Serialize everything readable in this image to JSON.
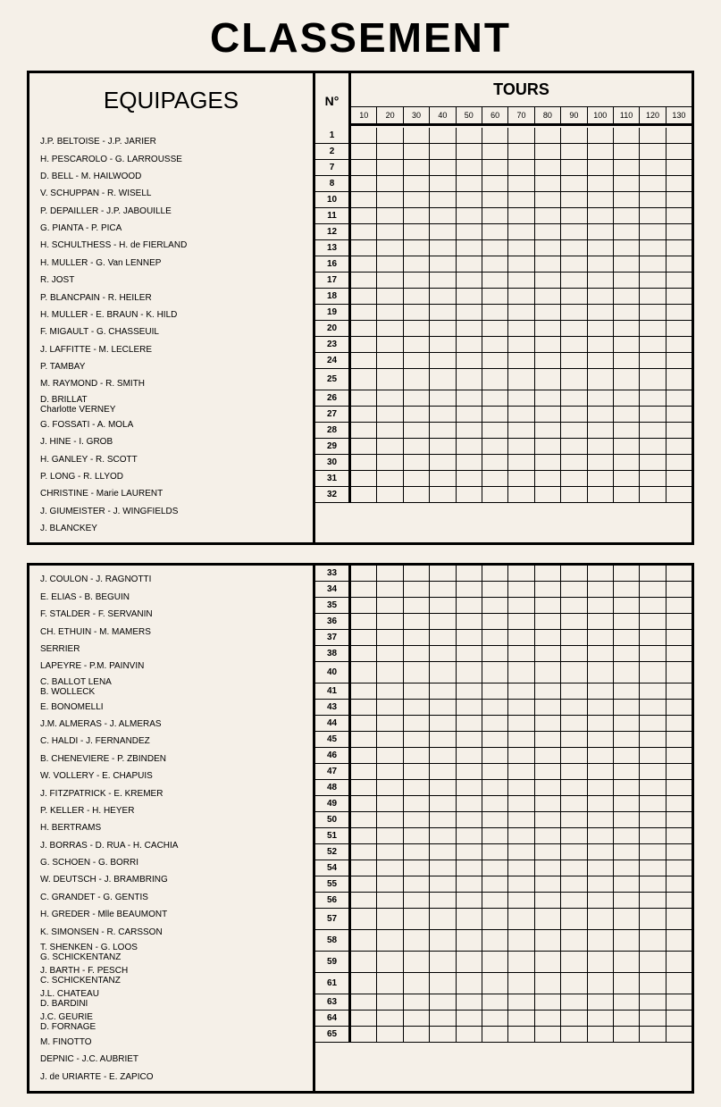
{
  "title": "CLASSEMENT",
  "headers": {
    "equipages": "EQUIPAGES",
    "no": "N°",
    "tours": "TOURS"
  },
  "tour_columns": [
    "10",
    "20",
    "30",
    "40",
    "50",
    "60",
    "70",
    "80",
    "90",
    "100",
    "110",
    "120",
    "130"
  ],
  "section1": [
    {
      "name": "J.P. BELTOISE - J.P. JARIER",
      "no": "1"
    },
    {
      "name": "H. PESCAROLO - G. LARROUSSE",
      "no": "2"
    },
    {
      "name": "D. BELL - M. HAILWOOD",
      "no": "7"
    },
    {
      "name": "V. SCHUPPAN - R. WISELL",
      "no": "8"
    },
    {
      "name": "P. DEPAILLER - J.P. JABOUILLE",
      "no": "10"
    },
    {
      "name": "G. PIANTA - P. PICA",
      "no": "11"
    },
    {
      "name": "H. SCHULTHESS - H. de FIERLAND",
      "no": "12"
    },
    {
      "name": "H. MULLER - G. Van LENNEP",
      "no": "13"
    },
    {
      "name": "R. JOST",
      "no": "16"
    },
    {
      "name": "P. BLANCPAIN - R. HEILER",
      "no": "17"
    },
    {
      "name": "H. MULLER - E. BRAUN - K. HILD",
      "no": "18"
    },
    {
      "name": "F. MIGAULT - G. CHASSEUIL",
      "no": "19"
    },
    {
      "name": "J. LAFFITTE - M. LECLERE",
      "no": "20"
    },
    {
      "name": "P. TAMBAY",
      "no": "23"
    },
    {
      "name": "M. RAYMOND - R. SMITH",
      "no": "24"
    },
    {
      "name": "D. BRILLAT\nCharlotte VERNEY",
      "no": "25",
      "multi": true
    },
    {
      "name": "G. FOSSATI - A. MOLA",
      "no": "26"
    },
    {
      "name": "J. HINE - I. GROB",
      "no": "27"
    },
    {
      "name": "H. GANLEY - R. SCOTT",
      "no": "28"
    },
    {
      "name": "P. LONG - R. LLYOD",
      "no": "29"
    },
    {
      "name": "CHRISTINE - Marie LAURENT",
      "no": "30"
    },
    {
      "name": "J. GIUMEISTER - J. WINGFIELDS",
      "no": "31"
    },
    {
      "name": "J. BLANCKEY",
      "no": "32"
    }
  ],
  "section2": [
    {
      "name": "J. COULON - J. RAGNOTTI",
      "no": "33"
    },
    {
      "name": "E. ELIAS - B. BEGUIN",
      "no": "34"
    },
    {
      "name": "F. STALDER - F. SERVANIN",
      "no": "35"
    },
    {
      "name": "CH. ETHUIN - M. MAMERS",
      "no": "36"
    },
    {
      "name": "SERRIER",
      "no": "37"
    },
    {
      "name": "LAPEYRE - P.M. PAINVIN",
      "no": "38"
    },
    {
      "name": "C. BALLOT LENA\nB. WOLLECK",
      "no": "40",
      "multi": true
    },
    {
      "name": "E. BONOMELLI",
      "no": "41"
    },
    {
      "name": "J.M. ALMERAS - J. ALMERAS",
      "no": "43"
    },
    {
      "name": "C. HALDI - J. FERNANDEZ",
      "no": "44"
    },
    {
      "name": "B. CHENEVIERE - P. ZBINDEN",
      "no": "45"
    },
    {
      "name": "W. VOLLERY - E. CHAPUIS",
      "no": "46"
    },
    {
      "name": "J. FITZPATRICK - E. KREMER",
      "no": "47"
    },
    {
      "name": "P. KELLER - H. HEYER",
      "no": "48"
    },
    {
      "name": "H. BERTRAMS",
      "no": "49"
    },
    {
      "name": "J. BORRAS - D. RUA - H. CACHIA",
      "no": "50"
    },
    {
      "name": "G. SCHOEN - G. BORRI",
      "no": "51"
    },
    {
      "name": "W. DEUTSCH - J. BRAMBRING",
      "no": "52"
    },
    {
      "name": "C. GRANDET - G. GENTIS",
      "no": "54"
    },
    {
      "name": "H. GREDER - Mlle BEAUMONT",
      "no": "55"
    },
    {
      "name": "K. SIMONSEN - R. CARSSON",
      "no": "56"
    },
    {
      "name": "T. SHENKEN - G. LOOS\nG. SCHICKENTANZ",
      "no": "57",
      "multi": true
    },
    {
      "name": "J. BARTH - F. PESCH\nC. SCHICKENTANZ",
      "no": "58",
      "multi": true
    },
    {
      "name": "J.L. CHATEAU\nD. BARDINI",
      "no": "59",
      "multi": true
    },
    {
      "name": "J.C. GEURIE\nD. FORNAGE",
      "no": "61",
      "multi": true
    },
    {
      "name": "M. FINOTTO",
      "no": "63"
    },
    {
      "name": "DEPNIC - J.C. AUBRIET",
      "no": "64"
    },
    {
      "name": "J. de URIARTE - E. ZAPICO",
      "no": "65"
    }
  ],
  "colors": {
    "background": "#f5f0e8",
    "border": "#000000",
    "text": "#000000"
  }
}
